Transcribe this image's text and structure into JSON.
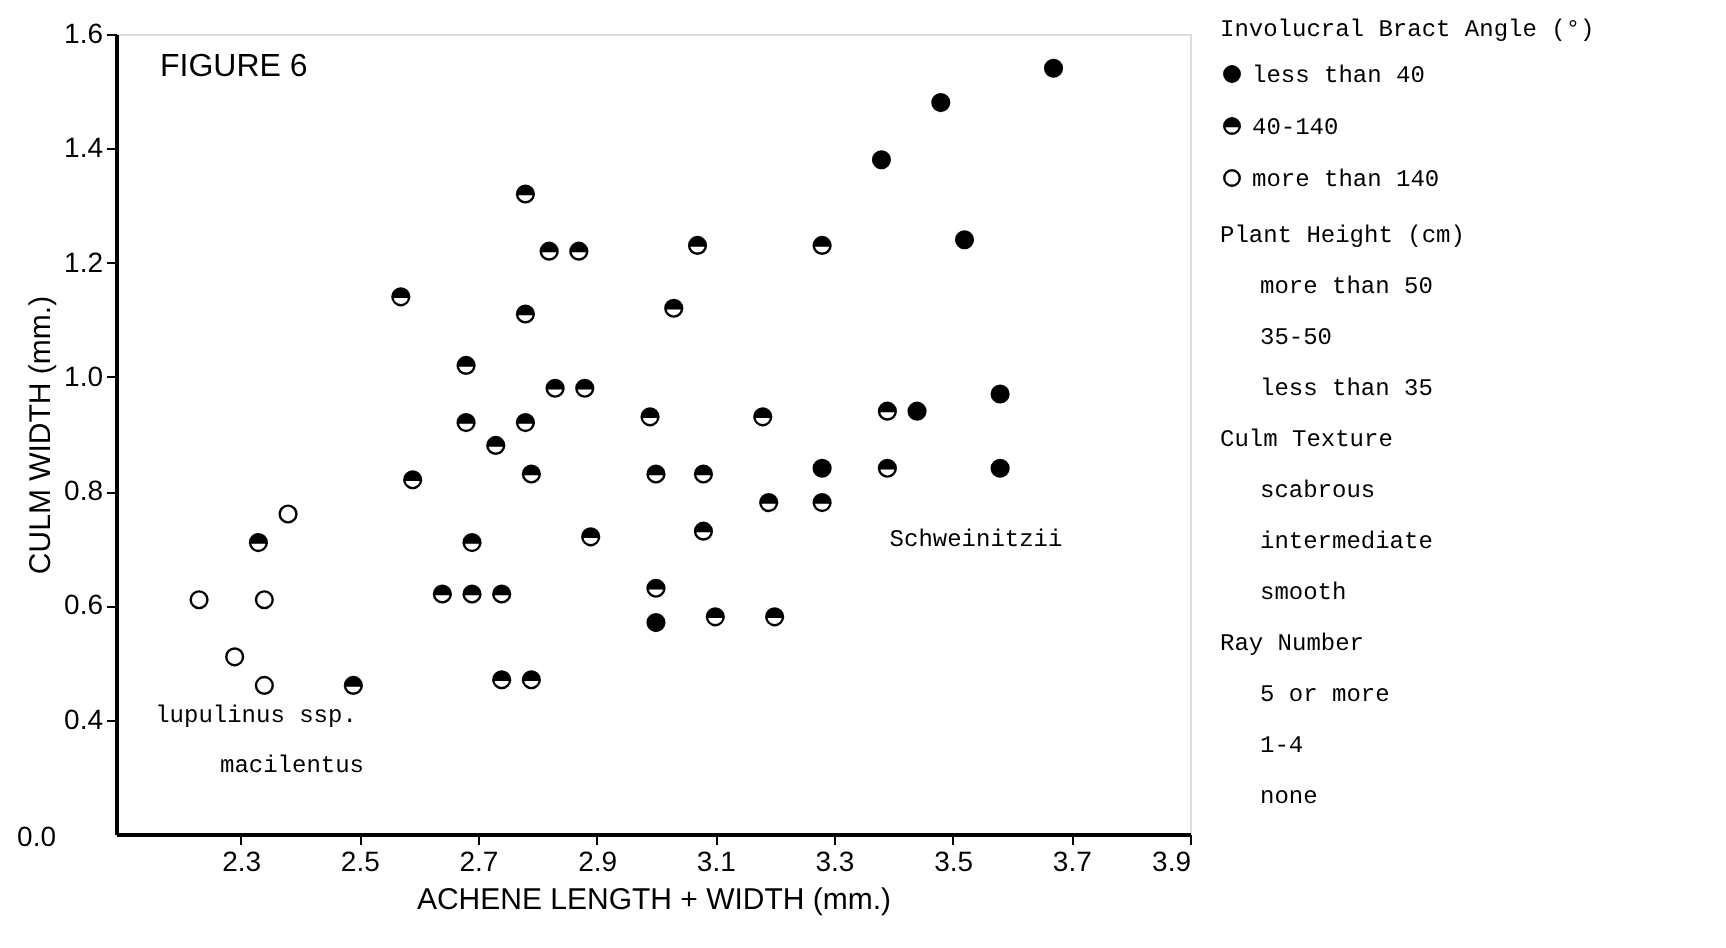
{
  "chart_data": {
    "type": "scatter",
    "title": "FIGURE 6",
    "xlabel": "ACHENE LENGTH + WIDTH  (mm.)",
    "ylabel": "CULM WIDTH (mm.)",
    "legend_title": "Involucral Bract Angle (°)",
    "legend": "right",
    "grid": false,
    "marker": "circle",
    "xlim": [
      2.09,
      3.9
    ],
    "xticks": [
      2.3,
      2.5,
      2.7,
      2.9,
      3.1,
      3.3,
      3.5,
      3.7,
      3.9
    ],
    "ylim": [
      0.2,
      1.6
    ],
    "yticks": [
      0.4,
      0.6,
      0.8,
      {
        "value": 1.0,
        "label": "1.0"
      },
      1.2,
      1.4,
      1.6
    ],
    "series": [
      {
        "name": "less than 40",
        "color": "#000000",
        "x": [
          3.67,
          3.48,
          3.38,
          3.52,
          3.58,
          3.44,
          3.28,
          3.58,
          3.0
        ],
        "values": [
          1.54,
          1.48,
          1.38,
          1.24,
          0.97,
          0.94,
          0.84,
          0.84,
          0.57
        ]
      },
      {
        "name": "40-140",
        "color": "#000000",
        "x": [
          2.33,
          2.49,
          2.59,
          2.57,
          2.64,
          2.69,
          2.74,
          2.69,
          2.68,
          2.68,
          2.73,
          2.74,
          2.79,
          2.79,
          2.78,
          2.78,
          2.78,
          2.83,
          2.82,
          2.87,
          2.88,
          2.89,
          3.07,
          3.28,
          3.03,
          2.99,
          3.18,
          3.39,
          3.0,
          3.08,
          3.39,
          3.19,
          3.28,
          3.08,
          3.0,
          3.1,
          3.2
        ],
        "values": [
          0.71,
          0.46,
          0.82,
          1.14,
          0.62,
          0.62,
          0.62,
          0.71,
          0.92,
          1.02,
          0.88,
          0.47,
          0.47,
          0.83,
          0.92,
          1.11,
          1.32,
          0.98,
          1.22,
          1.22,
          0.98,
          0.72,
          1.23,
          1.23,
          1.12,
          0.93,
          0.93,
          0.94,
          0.83,
          0.83,
          0.84,
          0.78,
          0.78,
          0.73,
          0.63,
          0.58,
          0.58
        ]
      },
      {
        "name": "more than 140",
        "color": "#ffffff",
        "x": [
          2.23,
          2.29,
          2.34,
          2.38,
          2.34
        ],
        "values": [
          0.61,
          0.51,
          0.61,
          0.76,
          0.46
        ]
      }
    ],
    "annotations": [
      "0.0",
      "lupulinus ssp.",
      "macilentus",
      "Schweinitzii",
      "Plant Height (cm)",
      "more than 50",
      "35-50",
      "less than 35",
      "Culm Texture",
      "scabrous",
      "intermediate",
      "smooth",
      "Ray Number",
      "5 or more",
      "1-4",
      "none"
    ]
  }
}
